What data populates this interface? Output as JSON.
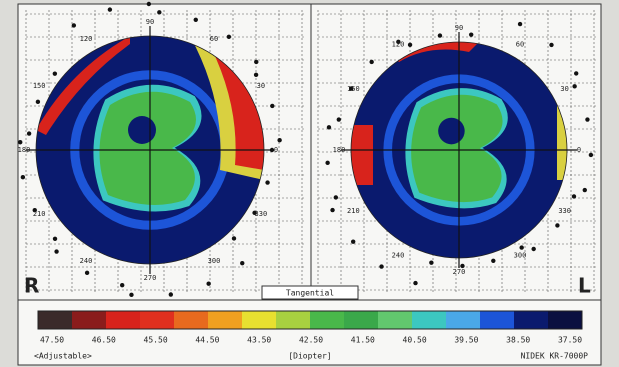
{
  "maps": [
    {
      "eye": "R",
      "angles": [
        "90",
        "120",
        "60",
        "150",
        "30",
        "180",
        "0",
        "210",
        "330",
        "240",
        "300",
        "270"
      ]
    },
    {
      "eye": "L",
      "angles": [
        "90",
        "120",
        "60",
        "150",
        "30",
        "180",
        "0",
        "210",
        "330",
        "240",
        "300",
        "270"
      ]
    }
  ],
  "mode": "Tangential",
  "scale": {
    "labels": [
      "47.50",
      "46.50",
      "45.50",
      "44.50",
      "43.50",
      "42.50",
      "41.50",
      "40.50",
      "39.50",
      "38.50",
      "37.50"
    ],
    "left_note": "<Adjustable>",
    "unit": "[Diopter]",
    "device": "NIDEK KR-7000P"
  }
}
